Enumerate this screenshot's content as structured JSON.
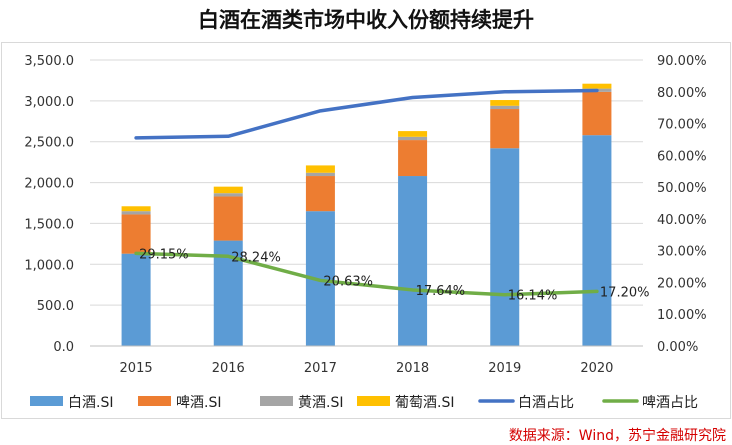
{
  "chart_data": {
    "type": "bar",
    "title": "白酒在酒类市场中收入份额持续提升",
    "categories": [
      "2015",
      "2016",
      "2017",
      "2018",
      "2019",
      "2020"
    ],
    "series": [
      {
        "name": "白酒.SI",
        "kind": "stacked-bar",
        "axis": "left",
        "color": "#5b9bd5",
        "values": [
          1130,
          1290,
          1650,
          2080,
          2420,
          2580
        ]
      },
      {
        "name": "啤酒.SI",
        "kind": "stacked-bar",
        "axis": "left",
        "color": "#ed7d31",
        "values": [
          480,
          540,
          430,
          440,
          480,
          530
        ]
      },
      {
        "name": "黄酒.SI",
        "kind": "stacked-bar",
        "axis": "left",
        "color": "#a5a5a5",
        "values": [
          40,
          40,
          40,
          40,
          40,
          40
        ]
      },
      {
        "name": "葡萄酒.SI",
        "kind": "stacked-bar",
        "axis": "left",
        "color": "#ffc000",
        "values": [
          60,
          80,
          90,
          70,
          70,
          60
        ]
      },
      {
        "name": "白酒占比",
        "kind": "line",
        "axis": "right",
        "color": "#4472c4",
        "values": [
          65.5,
          66.0,
          74.0,
          78.2,
          80.0,
          80.4
        ]
      },
      {
        "name": "啤酒占比",
        "kind": "line",
        "axis": "right",
        "color": "#70ad47",
        "values": [
          29.15,
          28.24,
          20.63,
          17.64,
          16.14,
          17.2
        ],
        "data_labels": [
          "29.15%",
          "28.24%",
          "20.63%",
          "17.64%",
          "16.14%",
          "17.20%"
        ]
      }
    ],
    "y_left": {
      "min": 0,
      "max": 3500,
      "step": 500,
      "tick_labels": [
        "0.0",
        "500.0",
        "1,000.0",
        "1,500.0",
        "2,000.0",
        "2,500.0",
        "3,000.0",
        "3,500.0"
      ]
    },
    "y_right": {
      "min": 0,
      "max": 90,
      "step": 10,
      "tick_labels": [
        "0.00%",
        "10.00%",
        "20.00%",
        "30.00%",
        "40.00%",
        "50.00%",
        "60.00%",
        "70.00%",
        "80.00%",
        "90.00%"
      ]
    },
    "grid": true,
    "legend_position": "bottom"
  },
  "source": "数据来源：Wind，苏宁金融研究院"
}
